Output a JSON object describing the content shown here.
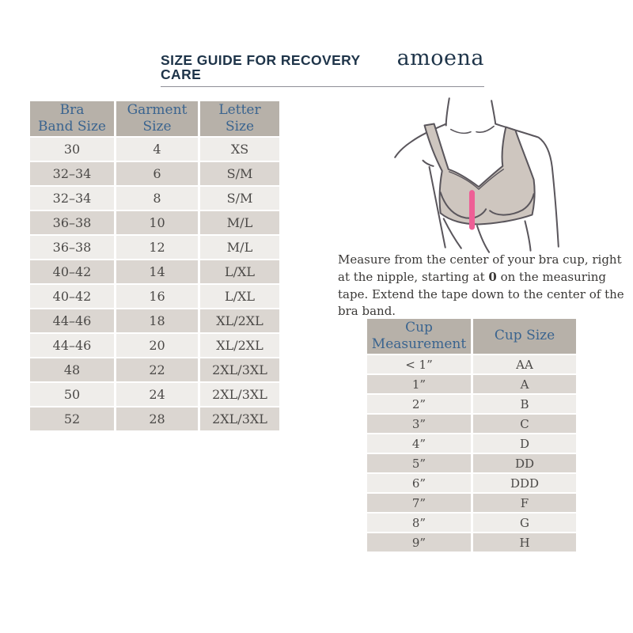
{
  "header": {
    "title": "SIZE GUIDE FOR RECOVERY CARE",
    "brand": "amoena"
  },
  "band_table": {
    "headers": [
      "Bra\nBand Size",
      "Garment\nSize",
      "Letter\nSize"
    ],
    "rows": [
      [
        "30",
        "4",
        "XS"
      ],
      [
        "32–34",
        "6",
        "S/M"
      ],
      [
        "32–34",
        "8",
        "S/M"
      ],
      [
        "36–38",
        "10",
        "M/L"
      ],
      [
        "36–38",
        "12",
        "M/L"
      ],
      [
        "40–42",
        "14",
        "L/XL"
      ],
      [
        "40–42",
        "16",
        "L/XL"
      ],
      [
        "44–46",
        "18",
        "XL/2XL"
      ],
      [
        "44–46",
        "20",
        "XL/2XL"
      ],
      [
        "48",
        "22",
        "2XL/3XL"
      ],
      [
        "50",
        "24",
        "2XL/3XL"
      ],
      [
        "52",
        "28",
        "2XL/3XL"
      ]
    ]
  },
  "cup_table": {
    "headers": [
      "Cup\nMeasurement",
      "Cup Size"
    ],
    "rows": [
      [
        "< 1”",
        "AA"
      ],
      [
        "1”",
        "A"
      ],
      [
        "2”",
        "B"
      ],
      [
        "3”",
        "C"
      ],
      [
        "4”",
        "D"
      ],
      [
        "5”",
        "DD"
      ],
      [
        "6”",
        "DDD"
      ],
      [
        "7”",
        "F"
      ],
      [
        "8”",
        "G"
      ],
      [
        "9”",
        "H"
      ]
    ]
  },
  "note": {
    "part1": "Measure from the center of your bra cup, right at the nipple, starting at ",
    "bold": "0",
    "part2": " on the measuring tape. Extend the tape down to the center of the bra band."
  },
  "illustration": {
    "description": "line drawing of torso wearing recovery bra with vertical measuring mark on cup"
  },
  "colors": {
    "navy": "#1e3449",
    "table_header_bg": "#b7b1a9",
    "table_header_text": "#3a648f",
    "row_light": "#efedea",
    "row_dark": "#dbd6d1",
    "cell_text": "#4b4947",
    "bra_fill": "#cec6bf",
    "outline": "#5a565c",
    "measuring_line_pink": "#ee5f96"
  }
}
